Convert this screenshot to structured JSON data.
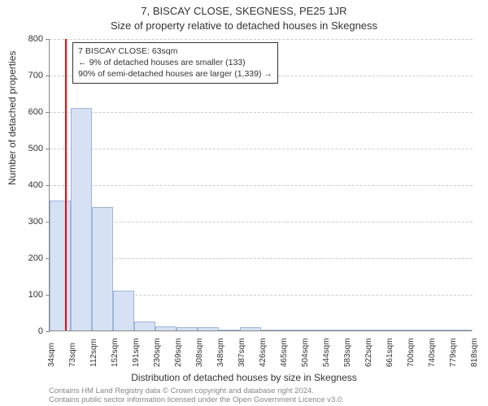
{
  "titles": {
    "main": "7, BISCAY CLOSE, SKEGNESS, PE25 1JR",
    "sub": "Size of property relative to detached houses in Skegness",
    "y_axis": "Number of detached properties",
    "x_axis": "Distribution of detached houses by size in Skegness"
  },
  "info_box": {
    "line1": "7 BISCAY CLOSE: 63sqm",
    "line2": "← 9% of detached houses are smaller (133)",
    "line3": "90% of semi-detached houses are larger (1,339) →"
  },
  "footer": {
    "line1": "Contains HM Land Registry data © Crown copyright and database right 2024.",
    "line2": "Contains public sector information licensed under the Open Government Licence v3.0."
  },
  "chart": {
    "type": "histogram",
    "background_color": "#ffffff",
    "grid_color": "#cccccc",
    "axis_color": "#888888",
    "bar_fill": "#d6e1f4",
    "bar_border": "#9db4da",
    "marker_color": "#ff0000",
    "marker_value": 63,
    "ylim": [
      0,
      800
    ],
    "ytick_step": 100,
    "x_start": 34,
    "x_step": 39.3,
    "x_labels": [
      "34sqm",
      "73sqm",
      "112sqm",
      "152sqm",
      "191sqm",
      "230sqm",
      "269sqm",
      "308sqm",
      "348sqm",
      "387sqm",
      "426sqm",
      "465sqm",
      "504sqm",
      "544sqm",
      "583sqm",
      "622sqm",
      "661sqm",
      "700sqm",
      "740sqm",
      "779sqm",
      "818sqm"
    ],
    "values": [
      355,
      610,
      338,
      110,
      25,
      12,
      10,
      8,
      0,
      8,
      3,
      0,
      3,
      0,
      0,
      0,
      0,
      0,
      3,
      0
    ],
    "label_fontsize": 10,
    "tick_fontsize": 11,
    "title_fontsize": 13
  }
}
